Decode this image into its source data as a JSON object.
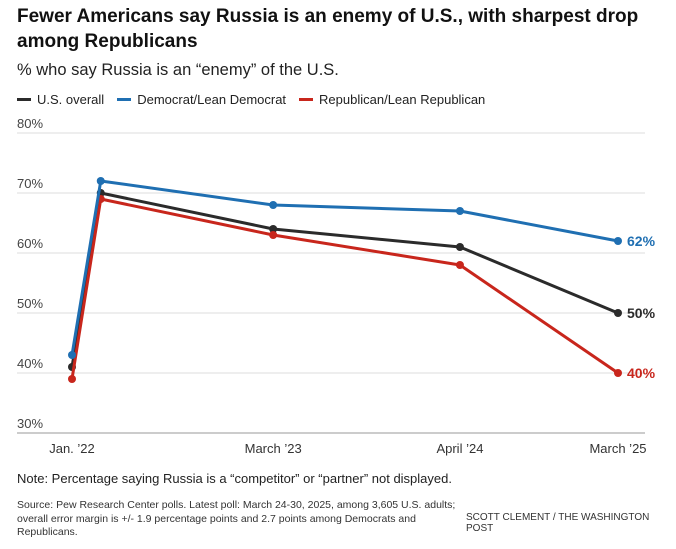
{
  "colors": {
    "overall": "#2b2b2b",
    "democrat": "#1f6fb2",
    "republican": "#c8261c",
    "grid": "#dedede"
  },
  "title": "Fewer Americans say Russia is an enemy of U.S., with sharpest drop among Republicans",
  "subtitle": "% who say Russia is an “enemy” of the U.S.",
  "note": "Note: Percentage saying Russia is a “competitor” or “partner” not displayed.",
  "source": "Source: Pew Research Center polls. Latest poll: March 24-30, 2025, among 3,605 U.S. adults; overall error margin is +/- 1.9 percentage points and 2.7 points among Democrats and Republicans.",
  "credit": "SCOTT CLEMENT / THE WASHINGTON POST",
  "chart_data": {
    "type": "line",
    "title": "Fewer Americans say Russia is an enemy of U.S., with sharpest drop among Republicans",
    "subtitle": "% who say Russia is an “enemy” of the U.S.",
    "x": [
      "2022-01",
      "2022-03",
      "2023-03",
      "2024-04",
      "2025-03"
    ],
    "x_ticks": [
      {
        "x": "2022-01",
        "label": "Jan. ’22"
      },
      {
        "x": "2023-03",
        "label": "March ’23"
      },
      {
        "x": "2024-04",
        "label": "April ’24"
      },
      {
        "x": "2025-03",
        "label": "March ’25"
      }
    ],
    "ylim": [
      30,
      80
    ],
    "y_ticks": [
      30,
      40,
      50,
      60,
      70,
      80
    ],
    "y_tick_suffix": "%",
    "grid": true,
    "legend_position": "top-left",
    "series": [
      {
        "name": "U.S. overall",
        "key": "overall",
        "values": [
          41,
          70,
          64,
          61,
          50
        ],
        "end_label": "50%"
      },
      {
        "name": "Democrat/Lean Democrat",
        "key": "democrat",
        "values": [
          43,
          72,
          68,
          67,
          62
        ],
        "end_label": "62%"
      },
      {
        "name": "Republican/Lean Republican",
        "key": "republican",
        "values": [
          39,
          69,
          63,
          58,
          40
        ],
        "end_label": "40%"
      }
    ]
  }
}
